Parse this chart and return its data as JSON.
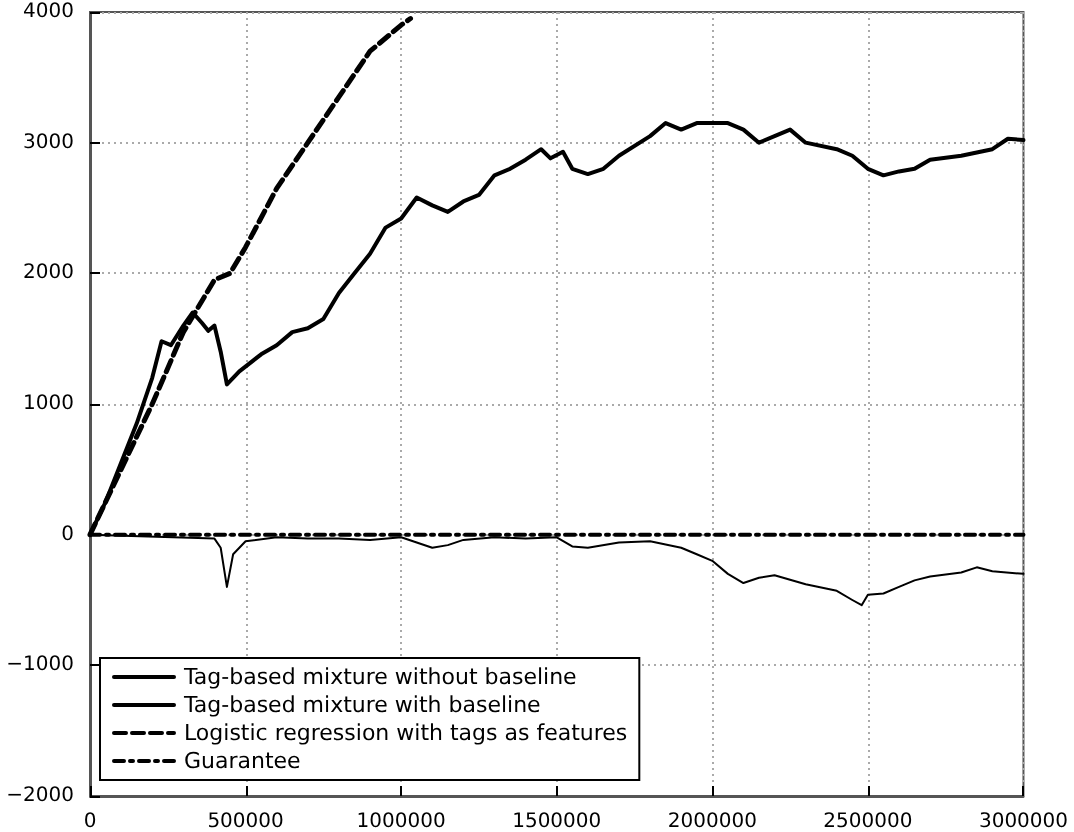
{
  "chart_data": {
    "type": "line",
    "xlim": [
      0,
      3000000
    ],
    "xticks": [
      0,
      500000,
      1000000,
      1500000,
      2000000,
      2500000,
      3000000
    ],
    "ylim": [
      -2000,
      4000
    ],
    "yticks": [
      -2000,
      -1000,
      0,
      1000,
      2000,
      3000,
      4000
    ],
    "grid": true,
    "legend": "bottom left",
    "marker": "none",
    "series": [
      {
        "name": "Tag-based mixture without baseline",
        "color": "#000000",
        "line_style": "solid",
        "x": [
          0,
          50000,
          100000,
          150000,
          200000,
          230000,
          260000,
          300000,
          330000,
          360000,
          380000,
          400000,
          420000,
          440000,
          480000,
          550000,
          600000,
          650000,
          700000,
          750000,
          800000,
          850000,
          900000,
          950000,
          1000000,
          1050000,
          1100000,
          1150000,
          1200000,
          1250000,
          1300000,
          1350000,
          1400000,
          1450000,
          1480000,
          1520000,
          1550000,
          1600000,
          1650000,
          1700000,
          1800000,
          1850000,
          1900000,
          1950000,
          2000000,
          2050000,
          2100000,
          2150000,
          2200000,
          2250000,
          2300000,
          2400000,
          2450000,
          2500000,
          2550000,
          2600000,
          2650000,
          2700000,
          2800000,
          2900000,
          2950000,
          3000000
        ],
        "values": [
          0,
          250,
          550,
          850,
          1200,
          1480,
          1450,
          1600,
          1700,
          1620,
          1560,
          1600,
          1400,
          1150,
          1250,
          1380,
          1450,
          1550,
          1580,
          1650,
          1850,
          2000,
          2150,
          2350,
          2420,
          2580,
          2520,
          2470,
          2550,
          2600,
          2750,
          2800,
          2870,
          2950,
          2880,
          2930,
          2800,
          2760,
          2800,
          2900,
          3050,
          3150,
          3100,
          3150,
          3150,
          3150,
          3100,
          3000,
          3050,
          3100,
          3000,
          2950,
          2900,
          2800,
          2750,
          2780,
          2800,
          2870,
          2900,
          2950,
          3030,
          3020
        ]
      },
      {
        "name": "Tag-based mixture with baseline",
        "color": "#000000",
        "line_style": "solid",
        "x": [
          0,
          400000,
          420000,
          440000,
          460000,
          500000,
          600000,
          700000,
          800000,
          900000,
          1000000,
          1100000,
          1150000,
          1200000,
          1300000,
          1400000,
          1500000,
          1550000,
          1600000,
          1700000,
          1800000,
          1900000,
          1950000,
          2000000,
          2050000,
          2100000,
          2150000,
          2200000,
          2300000,
          2400000,
          2450000,
          2480000,
          2500000,
          2550000,
          2600000,
          2650000,
          2700000,
          2800000,
          2850000,
          2900000,
          3000000
        ],
        "values": [
          0,
          -30,
          -100,
          -400,
          -150,
          -50,
          -20,
          -30,
          -30,
          -40,
          -20,
          -100,
          -80,
          -40,
          -20,
          -30,
          -20,
          -90,
          -100,
          -60,
          -50,
          -100,
          -150,
          -200,
          -300,
          -370,
          -330,
          -310,
          -380,
          -430,
          -500,
          -540,
          -460,
          -450,
          -400,
          -350,
          -320,
          -290,
          -250,
          -280,
          -300
        ]
      },
      {
        "name": "Logistic regression with tags as features",
        "color": "#000000",
        "line_style": "dashed",
        "x": [
          0,
          100000,
          200000,
          300000,
          400000,
          450000,
          500000,
          600000,
          700000,
          800000,
          900000,
          1000000,
          1030000
        ],
        "values": [
          0,
          500,
          1000,
          1550,
          1950,
          2000,
          2200,
          2650,
          3000,
          3350,
          3700,
          3900,
          3950
        ]
      },
      {
        "name": "Guarantee",
        "color": "#000000",
        "line_style": "dashdot",
        "x": [
          0,
          3000000
        ],
        "values": [
          0,
          0
        ]
      }
    ]
  }
}
